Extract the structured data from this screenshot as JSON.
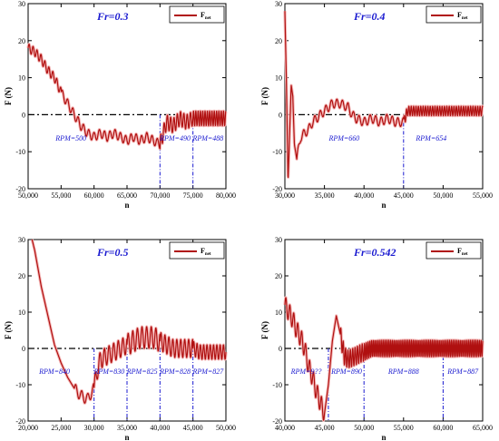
{
  "chart_data": [
    {
      "type": "line",
      "title": "Fr=0.3",
      "xlabel": "n",
      "ylabel": "F (N)",
      "legend": {
        "label": "F",
        "subscript": "net",
        "placement": "top-right"
      },
      "xlim": [
        50000,
        80000
      ],
      "ylim": [
        -20,
        30
      ],
      "xticks": [
        50000,
        55000,
        60000,
        65000,
        70000,
        75000,
        80000
      ],
      "xtick_labels": [
        "50,000",
        "55,000",
        "60,000",
        "65,000",
        "70,000",
        "75,000",
        "80,000"
      ],
      "yticks": [
        -20,
        -10,
        0,
        10,
        20,
        30
      ],
      "ytick_labels": [
        "-20",
        "-10",
        "0",
        "10",
        "20",
        "30"
      ],
      "dividers": [
        70000,
        75000
      ],
      "rpm_labels": [
        {
          "x": 56500,
          "text": "RPM=500"
        },
        {
          "x": 72300,
          "text": "RPM=490"
        },
        {
          "x": 77300,
          "text": "RPM=488"
        }
      ],
      "series": [
        {
          "points": [
            [
              50000,
              18
            ],
            [
              51000,
              17
            ],
            [
              52000,
              15
            ],
            [
              53000,
              12
            ],
            [
              54000,
              10
            ],
            [
              55000,
              6
            ],
            [
              56000,
              3
            ],
            [
              57000,
              0
            ],
            [
              58000,
              -3
            ],
            [
              59000,
              -5
            ],
            [
              60000,
              -6
            ],
            [
              61000,
              -5
            ],
            [
              62000,
              -6
            ],
            [
              63000,
              -5
            ],
            [
              64000,
              -6
            ],
            [
              65000,
              -7
            ],
            [
              66000,
              -6
            ],
            [
              67000,
              -7
            ],
            [
              68000,
              -6
            ],
            [
              69000,
              -7
            ],
            [
              70000,
              -8
            ],
            [
              71000,
              -2
            ],
            [
              72000,
              -3
            ],
            [
              73000,
              -1
            ],
            [
              74000,
              -2
            ],
            [
              75000,
              -1
            ],
            [
              76000,
              -1
            ],
            [
              77000,
              -1
            ],
            [
              78000,
              -1
            ],
            [
              79000,
              -1
            ],
            [
              80000,
              -1
            ]
          ],
          "osc": [
            {
              "x0": 50000,
              "x1": 55000,
              "amp": 1.2,
              "period": 600
            },
            {
              "x0": 55000,
              "x1": 70000,
              "amp": 1.2,
              "period": 800
            },
            {
              "x0": 70000,
              "x1": 75000,
              "amp": 2.0,
              "period": 500
            },
            {
              "x0": 75000,
              "x1": 80000,
              "amp": 2.0,
              "period": 350
            }
          ]
        }
      ]
    },
    {
      "type": "line",
      "title": "Fr=0.4",
      "xlabel": "n",
      "ylabel": "F (N)",
      "legend": {
        "label": "F",
        "subscript": "net",
        "placement": "top-right"
      },
      "xlim": [
        30000,
        55000
      ],
      "ylim": [
        -20,
        30
      ],
      "xticks": [
        30000,
        35000,
        40000,
        45000,
        50000,
        55000
      ],
      "xtick_labels": [
        "30,000",
        "35,000",
        "40,000",
        "45,000",
        "50,000",
        "55,000"
      ],
      "yticks": [
        -20,
        -10,
        0,
        10,
        20,
        30
      ],
      "ytick_labels": [
        "-20",
        "-10",
        "0",
        "10",
        "20",
        "30"
      ],
      "dividers": [
        45000
      ],
      "rpm_labels": [
        {
          "x": 37500,
          "text": "RPM=660"
        },
        {
          "x": 48500,
          "text": "RPM=654"
        }
      ],
      "series": [
        {
          "points": [
            [
              30000,
              28
            ],
            [
              30200,
              8
            ],
            [
              30400,
              -18
            ],
            [
              30600,
              -5
            ],
            [
              30800,
              8
            ],
            [
              31000,
              5
            ],
            [
              31200,
              -8
            ],
            [
              31500,
              -12
            ],
            [
              32000,
              -6
            ],
            [
              32500,
              -5
            ],
            [
              33000,
              -4
            ],
            [
              33500,
              -2
            ],
            [
              34000,
              -1
            ],
            [
              35000,
              1
            ],
            [
              35500,
              2
            ],
            [
              36000,
              3
            ],
            [
              37000,
              3
            ],
            [
              38000,
              2
            ],
            [
              38500,
              0
            ],
            [
              39000,
              -1
            ],
            [
              40000,
              -2
            ],
            [
              41000,
              -1
            ],
            [
              42000,
              -2
            ],
            [
              43000,
              -1
            ],
            [
              44000,
              -2
            ],
            [
              45000,
              -2
            ],
            [
              45500,
              1
            ],
            [
              47000,
              1
            ],
            [
              49000,
              1
            ],
            [
              51000,
              1
            ],
            [
              53000,
              1
            ],
            [
              55000,
              1
            ]
          ],
          "osc": [
            {
              "x0": 31500,
              "x1": 45000,
              "amp": 1.2,
              "period": 700
            },
            {
              "x0": 45000,
              "x1": 55000,
              "amp": 1.3,
              "period": 300
            }
          ]
        }
      ]
    },
    {
      "type": "line",
      "title": "Fr=0.5",
      "xlabel": "n",
      "ylabel": "F (N)",
      "legend": {
        "label": "F",
        "subscript": "net",
        "placement": "top-right"
      },
      "xlim": [
        20000,
        50000
      ],
      "ylim": [
        -20,
        30
      ],
      "xticks": [
        20000,
        25000,
        30000,
        35000,
        40000,
        45000,
        50000
      ],
      "xtick_labels": [
        "20,000",
        "25,000",
        "30,000",
        "35,000",
        "40,000",
        "45,000",
        "50,000"
      ],
      "yticks": [
        -20,
        -10,
        0,
        10,
        20,
        30
      ],
      "ytick_labels": [
        "-20",
        "-10",
        "0",
        "10",
        "20",
        "30"
      ],
      "dividers": [
        30000,
        35000,
        40000,
        45000
      ],
      "rpm_labels": [
        {
          "x": 24000,
          "text": "RPM=840"
        },
        {
          "x": 32300,
          "text": "RPM=830"
        },
        {
          "x": 37300,
          "text": "RPM=825"
        },
        {
          "x": 42300,
          "text": "RPM=828"
        },
        {
          "x": 47300,
          "text": "RPM=827"
        }
      ],
      "series": [
        {
          "points": [
            [
              20600,
              30
            ],
            [
              21000,
              27
            ],
            [
              21500,
              22
            ],
            [
              22000,
              17
            ],
            [
              22500,
              13
            ],
            [
              23000,
              9
            ],
            [
              23500,
              5
            ],
            [
              24000,
              1
            ],
            [
              25000,
              -4
            ],
            [
              26000,
              -8
            ],
            [
              27000,
              -11
            ],
            [
              28000,
              -13
            ],
            [
              29000,
              -14
            ],
            [
              30000,
              -11
            ],
            [
              30500,
              -6
            ],
            [
              31000,
              -3
            ],
            [
              32000,
              -2
            ],
            [
              33000,
              -1
            ],
            [
              34000,
              0
            ],
            [
              35000,
              1
            ],
            [
              36000,
              2
            ],
            [
              37000,
              3
            ],
            [
              38000,
              3
            ],
            [
              39000,
              3
            ],
            [
              40000,
              2
            ],
            [
              41000,
              1
            ],
            [
              42000,
              0
            ],
            [
              43000,
              0
            ],
            [
              44000,
              0
            ],
            [
              45000,
              0
            ],
            [
              46000,
              -1
            ],
            [
              48000,
              -1
            ],
            [
              50000,
              -1
            ]
          ],
          "osc": [
            {
              "x0": 27000,
              "x1": 30000,
              "amp": 1.5,
              "period": 900
            },
            {
              "x0": 30000,
              "x1": 35000,
              "amp": 2.5,
              "period": 700
            },
            {
              "x0": 35000,
              "x1": 40000,
              "amp": 3.0,
              "period": 700
            },
            {
              "x0": 40000,
              "x1": 45000,
              "amp": 2.5,
              "period": 600
            },
            {
              "x0": 45000,
              "x1": 50000,
              "amp": 2.0,
              "period": 500
            }
          ]
        }
      ]
    },
    {
      "type": "line",
      "title": "Fr=0.542",
      "xlabel": "n",
      "ylabel": "F (N)",
      "legend": {
        "label": "F",
        "subscript": "net",
        "placement": "top-right"
      },
      "xlim": [
        40000,
        65000
      ],
      "ylim": [
        -20,
        30
      ],
      "xticks": [
        40000,
        45000,
        50000,
        55000,
        60000,
        65000
      ],
      "xtick_labels": [
        "40,000",
        "45,000",
        "50,000",
        "55,000",
        "60,000",
        "65,000"
      ],
      "yticks": [
        -20,
        -10,
        0,
        10,
        20,
        30
      ],
      "ytick_labels": [
        "-20",
        "-10",
        "0",
        "10",
        "20",
        "30"
      ],
      "dividers": [
        45500,
        50000,
        60000
      ],
      "rpm_labels": [
        {
          "x": 42700,
          "text": "RPM=9??"
        },
        {
          "x": 47800,
          "text": "RPM=890"
        },
        {
          "x": 55000,
          "text": "RPM=888"
        },
        {
          "x": 62500,
          "text": "RPM=887"
        }
      ],
      "series": [
        {
          "points": [
            [
              40000,
              12
            ],
            [
              40500,
              10
            ],
            [
              41000,
              8
            ],
            [
              41500,
              5
            ],
            [
              42000,
              3
            ],
            [
              42500,
              0
            ],
            [
              43000,
              -5
            ],
            [
              43500,
              -8
            ],
            [
              44000,
              -12
            ],
            [
              44500,
              -15
            ],
            [
              45000,
              -18
            ],
            [
              45500,
              -10
            ],
            [
              46000,
              2
            ],
            [
              46500,
              9
            ],
            [
              47000,
              4
            ],
            [
              47500,
              -2
            ],
            [
              48000,
              -3
            ],
            [
              49000,
              -2
            ],
            [
              50000,
              -1
            ],
            [
              51000,
              0
            ],
            [
              53000,
              0
            ],
            [
              55000,
              0
            ],
            [
              57000,
              0
            ],
            [
              59000,
              0
            ],
            [
              61000,
              0
            ],
            [
              63000,
              0
            ],
            [
              65000,
              0
            ]
          ],
          "osc": [
            {
              "x0": 40000,
              "x1": 45000,
              "amp": 2.5,
              "period": 500
            },
            {
              "x0": 47000,
              "x1": 50000,
              "amp": 2.5,
              "period": 300
            },
            {
              "x0": 50000,
              "x1": 65000,
              "amp": 2.3,
              "period": 220
            }
          ]
        }
      ]
    }
  ]
}
